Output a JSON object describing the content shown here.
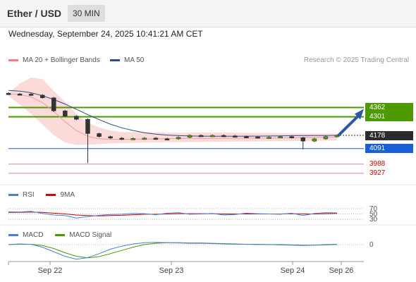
{
  "header": {
    "pair": "Ether / USD",
    "interval": "30 MIN"
  },
  "timestamp": "Wednesday, September 24, 2025 10:41:21 AM CET",
  "legend": {
    "bollinger": "MA 20 + Bollinger Bands",
    "ma50": "MA 50",
    "credit": "Research © 2025 Trading Central"
  },
  "rsi_legend": {
    "rsi": "RSI",
    "ma": "9MA"
  },
  "macd_legend": {
    "macd": "MACD",
    "signal": "MACD Signal"
  },
  "colors": {
    "resistance": "#4c9a00",
    "support_blue": "#1a5fd6",
    "support_red": "#cc0000",
    "current": "#2b2b2b",
    "bollinger": "#f08080",
    "ma50": "#2c4f8c",
    "arrow": "#2c5aa0"
  },
  "chart_data": [
    {
      "type": "line",
      "panel": "price",
      "x_ticks": [
        "Sep 22",
        "Sep 23",
        "Sep 24",
        "Sep 26"
      ],
      "levels": [
        {
          "value": 4362,
          "label": "4362",
          "kind": "resistance"
        },
        {
          "value": 4301,
          "label": "4301",
          "kind": "resistance"
        },
        {
          "value": 4178,
          "label": "4178",
          "kind": "current"
        },
        {
          "value": 4091,
          "label": "4091",
          "kind": "support_blue"
        },
        {
          "value": 3988,
          "label": "3988",
          "kind": "support_red"
        },
        {
          "value": 3927,
          "label": "3927",
          "kind": "support_red"
        }
      ],
      "series": [
        {
          "name": "MA 50",
          "values": [
            4475,
            4470,
            4460,
            4440,
            4415,
            4385,
            4350,
            4315,
            4282,
            4252,
            4228,
            4210,
            4196,
            4186,
            4180,
            4176,
            4174,
            4173,
            4172,
            4172,
            4172,
            4173,
            4173,
            4174,
            4175,
            4176,
            4176,
            4177,
            4177,
            4178
          ]
        },
        {
          "name": "MA 20 + Bollinger Bands",
          "values": [
            4452,
            4448,
            4432,
            4395,
            4335,
            4268,
            4210,
            4172,
            4156,
            4152,
            4152,
            4153,
            4154,
            4155,
            4156,
            4157,
            4158,
            4158,
            4158,
            4159,
            4159,
            4160,
            4160,
            4160,
            4161,
            4162,
            4163,
            4164,
            4166,
            4168
          ]
        }
      ],
      "price_close": [
        4452,
        4451,
        4444,
        4426,
        4340,
        4305,
        4284,
        4190,
        4170,
        4160,
        4153,
        4158,
        4160,
        4156,
        4155,
        4165,
        4178,
        4176,
        4178,
        4175,
        4170,
        4168,
        4166,
        4166,
        4170,
        4163,
        4140,
        4155,
        4170,
        4178
      ],
      "bb_upper": [
        4458,
        4520,
        4560,
        4550,
        4470,
        4400,
        4320,
        4260,
        4230,
        4210,
        4200,
        4200,
        4200,
        4198,
        4195,
        4195,
        4196,
        4197,
        4197,
        4197,
        4196,
        4195,
        4194,
        4193,
        4192,
        4191,
        4190,
        4190,
        4190,
        4190
      ],
      "bb_lower": [
        4440,
        4380,
        4320,
        4250,
        4180,
        4130,
        4115,
        4115,
        4120,
        4126,
        4127,
        4128,
        4130,
        4132,
        4133,
        4133,
        4134,
        4135,
        4135,
        4136,
        4137,
        4138,
        4138,
        4139,
        4139,
        4140,
        4141,
        4142,
        4143,
        4144
      ],
      "forecast": {
        "from": 4178,
        "to": 4362
      },
      "ylim": [
        3880,
        4560
      ]
    },
    {
      "type": "line",
      "panel": "rsi",
      "ref_levels": [
        70,
        50,
        30
      ],
      "series": [
        {
          "name": "RSI",
          "values": [
            58,
            57,
            60,
            52,
            46,
            44,
            35,
            40,
            45,
            48,
            49,
            52,
            51,
            47,
            53,
            55,
            49,
            50,
            52,
            46,
            48,
            53,
            51,
            50,
            49,
            53,
            44,
            52,
            55,
            54
          ]
        },
        {
          "name": "9MA",
          "values": [
            56,
            56,
            57,
            56,
            53,
            50,
            46,
            44,
            43,
            44,
            45,
            47,
            49,
            49,
            50,
            51,
            51,
            51,
            51,
            50,
            50,
            50,
            50,
            50,
            50,
            51,
            50,
            50,
            51,
            52
          ]
        }
      ],
      "ylim": [
        25,
        75
      ]
    },
    {
      "type": "line",
      "panel": "macd",
      "ref_levels": [
        0
      ],
      "series": [
        {
          "name": "MACD",
          "values": [
            0,
            2,
            1,
            -8,
            -22,
            -36,
            -45,
            -40,
            -28,
            -14,
            -5,
            2,
            6,
            7,
            6,
            5,
            4,
            4,
            3,
            2,
            1,
            1,
            0,
            0,
            -1,
            -2,
            -3,
            -2,
            0,
            1
          ]
        },
        {
          "name": "MACD Signal",
          "values": [
            0,
            1,
            1,
            -3,
            -12,
            -25,
            -36,
            -41,
            -37,
            -28,
            -18,
            -8,
            0,
            4,
            6,
            6,
            5,
            5,
            4,
            3,
            2,
            1,
            1,
            0,
            0,
            -1,
            -2,
            -2,
            -1,
            0
          ]
        }
      ],
      "ylim": [
        -50,
        15
      ]
    }
  ]
}
